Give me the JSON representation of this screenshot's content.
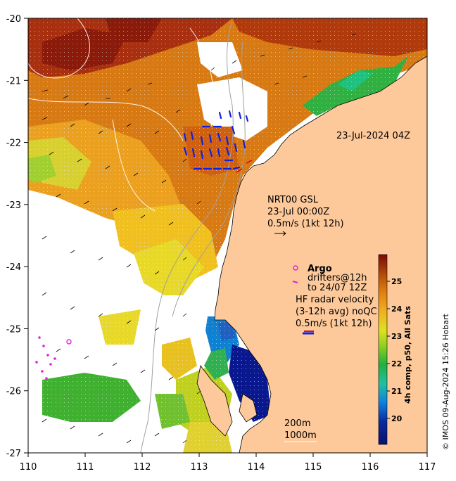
{
  "map": {
    "date_label": "23-Jul-2024 04Z",
    "nrt": {
      "line1": "NRT00 GSL",
      "line2": "23-Jul 00:00Z",
      "line3": "0.5m/s (1kt 12h)"
    },
    "legend": {
      "argo": "Argo",
      "drifters_line1": "drifters@12h",
      "drifters_line2": "to 24/07 12Z",
      "hf_line1": "HF radar velocity",
      "hf_line2": "(3-12h avg) noQC",
      "hf_line3": "0.5m/s (1kt 12h)"
    },
    "isobaths": {
      "shallow": "200m",
      "deep": "1000m"
    },
    "colorbar": {
      "title": "4h comp, p50, All Sats",
      "ticks": [
        "25",
        "24",
        "23",
        "22",
        "21",
        "20"
      ]
    },
    "credit": "© IMOS 09-Aug-2024 15:26 Hobart",
    "lon_ticks": [
      "110",
      "111",
      "112",
      "113",
      "114",
      "115",
      "116",
      "117"
    ],
    "lat_ticks": [
      "-20",
      "-21",
      "-22",
      "-23",
      "-24",
      "-25",
      "-26",
      "-27"
    ],
    "colors": {
      "land": "#fdc99a",
      "argo": "#e020e0",
      "hf_radar": "#1020e0",
      "drifter": "#e020e0"
    }
  }
}
